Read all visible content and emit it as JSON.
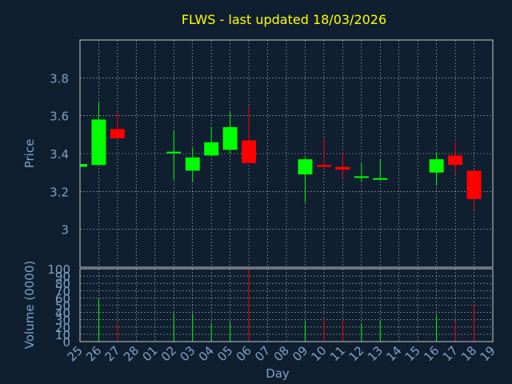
{
  "colors": {
    "background": "#0f1f30",
    "title": "#ffff00",
    "axis_text": "#7fa2c4",
    "grid": "#c8c8c8",
    "up": "#00ff00",
    "down": "#ff0000"
  },
  "chart_data": {
    "type": "candlestick",
    "title": "FLWS - last updated 18/03/2026",
    "xlabel": "Day",
    "ylabel": "Price",
    "volume_label": "Volume (0000)",
    "grid": true,
    "categories": [
      "25",
      "26",
      "27",
      "28",
      "01",
      "02",
      "03",
      "04",
      "05",
      "06",
      "07",
      "08",
      "09",
      "10",
      "11",
      "12",
      "13",
      "14",
      "15",
      "16",
      "17",
      "18",
      "19"
    ],
    "price_axis": {
      "min": 2.8,
      "max": 4.0,
      "ticks": [
        3,
        3.2,
        3.4,
        3.6,
        3.8
      ],
      "tick_labels": [
        "3",
        "3.2",
        "3.4",
        "3.6",
        "3.8"
      ]
    },
    "volume_axis": {
      "min": 0,
      "max": 100,
      "ticks": [
        0,
        10,
        20,
        30,
        40,
        50,
        60,
        70,
        80,
        90,
        100
      ],
      "tick_labels": [
        "0",
        "10",
        "20",
        "30",
        "40",
        "50",
        "60",
        "70",
        "80",
        "90",
        "100"
      ]
    },
    "candles": [
      {
        "day": "25",
        "open": 3.33,
        "close": 3.345,
        "high": 3.35,
        "low": 3.33,
        "volume": 0
      },
      {
        "day": "26",
        "open": 3.34,
        "close": 3.58,
        "high": 3.67,
        "low": 3.34,
        "volume": 59
      },
      {
        "day": "27",
        "open": 3.53,
        "close": 3.48,
        "high": 3.62,
        "low": 3.48,
        "volume": 27
      },
      {
        "day": "02",
        "open": 3.405,
        "close": 3.41,
        "high": 3.52,
        "low": 3.26,
        "volume": 39
      },
      {
        "day": "03",
        "open": 3.31,
        "close": 3.38,
        "high": 3.43,
        "low": 3.25,
        "volume": 39
      },
      {
        "day": "04",
        "open": 3.39,
        "close": 3.46,
        "high": 3.54,
        "low": 3.39,
        "volume": 25
      },
      {
        "day": "05",
        "open": 3.42,
        "close": 3.54,
        "high": 3.62,
        "low": 3.4,
        "volume": 27
      },
      {
        "day": "06",
        "open": 3.47,
        "close": 3.35,
        "high": 3.65,
        "low": 3.35,
        "volume": 100
      },
      {
        "day": "09",
        "open": 3.29,
        "close": 3.37,
        "high": 3.38,
        "low": 3.14,
        "volume": 28
      },
      {
        "day": "10",
        "open": 3.34,
        "close": 3.33,
        "high": 3.48,
        "low": 3.32,
        "volume": 31
      },
      {
        "day": "11",
        "open": 3.33,
        "close": 3.315,
        "high": 3.41,
        "low": 3.27,
        "volume": 30
      },
      {
        "day": "12",
        "open": 3.275,
        "close": 3.28,
        "high": 3.35,
        "low": 3.25,
        "volume": 25
      },
      {
        "day": "13",
        "open": 3.265,
        "close": 3.27,
        "high": 3.37,
        "low": 3.26,
        "volume": 29
      },
      {
        "day": "16",
        "open": 3.3,
        "close": 3.37,
        "high": 3.41,
        "low": 3.23,
        "volume": 36
      },
      {
        "day": "17",
        "open": 3.39,
        "close": 3.34,
        "high": 3.46,
        "low": 3.29,
        "volume": 27
      },
      {
        "day": "18",
        "open": 3.31,
        "close": 3.16,
        "high": 3.31,
        "low": 3.1,
        "volume": 52
      }
    ]
  }
}
